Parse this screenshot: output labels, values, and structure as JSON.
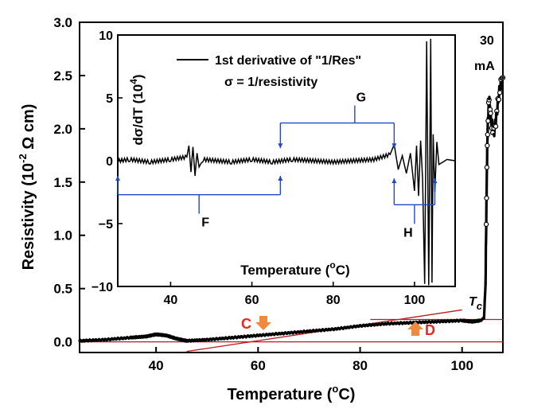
{
  "chart_data": [
    {
      "type": "line",
      "role": "main",
      "xlabel_main": "Temperature (",
      "xlabel_sup": "o",
      "xlabel_end": "C)",
      "ylabel_main": "Resistivity (10",
      "ylabel_sup": "-2",
      "ylabel_end": " Ω cm)",
      "xlim": [
        25,
        108
      ],
      "ylim": [
        -0.1,
        3.0
      ],
      "xticks": [
        40,
        60,
        80,
        100
      ],
      "yticks": [
        0.0,
        0.5,
        1.0,
        1.5,
        2.0,
        2.5,
        3.0
      ],
      "ytick_labels": [
        "0.0",
        "0.5",
        "1.0",
        "1.5",
        "2.0",
        "2.5",
        "3.0"
      ],
      "series": [
        {
          "name": "",
          "x": [
            25,
            30,
            35,
            38,
            40,
            42,
            44,
            46,
            50,
            55,
            60,
            65,
            70,
            75,
            80,
            85,
            90,
            95,
            100,
            102,
            103.5,
            104.3,
            104.6,
            104.8,
            105.0,
            105.3,
            105.6,
            106.2,
            106.8,
            107.4,
            108
          ],
          "y": [
            0.01,
            0.02,
            0.04,
            0.05,
            0.07,
            0.06,
            0.03,
            0.01,
            0.02,
            0.04,
            0.06,
            0.08,
            0.1,
            0.12,
            0.15,
            0.17,
            0.18,
            0.19,
            0.2,
            0.19,
            0.2,
            0.22,
            0.55,
            1.4,
            2.0,
            2.28,
            2.1,
            1.95,
            2.15,
            2.38,
            2.48
          ]
        }
      ],
      "annotations": {
        "tc_main": "T",
        "tc_sub": "c",
        "current_line1": "30",
        "current_line2": "mA",
        "label_c": "C",
        "label_d": "D"
      },
      "colors": {
        "data": "#000000",
        "fit_lines": "#c0181c",
        "arrow": "#f08a3c",
        "label_red": "#e8261e"
      }
    },
    {
      "type": "line",
      "role": "inset",
      "xlabel_main": "Temperature (",
      "xlabel_sup": "o",
      "xlabel_end": "C)",
      "ylabel_main": "dσ/dT (10",
      "ylabel_sup": "4",
      "ylabel_end": ")",
      "xlim": [
        27,
        110
      ],
      "ylim": [
        -10,
        10
      ],
      "xticks": [
        40,
        60,
        80,
        100
      ],
      "yticks": [
        -10,
        -5,
        0,
        5,
        10
      ],
      "ytick_labels": [
        "−10",
        "−5",
        "0",
        "5",
        "10"
      ],
      "legend": {
        "label": "1st derivative of \"1/Res\"",
        "note": "σ = 1/resistivity",
        "placement": "top-center"
      },
      "series": [
        {
          "name": "1st derivative of \"1/Res\"",
          "x": [
            27,
            30,
            35,
            40,
            44,
            44.5,
            45,
            45.5,
            46,
            46.5,
            47,
            48,
            55,
            60,
            65,
            70,
            80,
            90,
            94,
            95,
            96,
            97,
            98,
            99,
            100,
            100.5,
            101,
            101.5,
            102,
            102.5,
            103,
            103.5,
            104,
            104.3,
            104.6,
            105,
            105.5,
            106,
            108,
            110
          ],
          "y": [
            0,
            0.1,
            -0.1,
            0.1,
            0.3,
            1.2,
            -0.9,
            1.1,
            -1.2,
            0.6,
            -0.5,
            0.1,
            -0.1,
            0.1,
            -0.1,
            0.1,
            -0.1,
            0.1,
            0.5,
            1.3,
            -0.7,
            0.4,
            -1.0,
            0.6,
            -2.4,
            1.2,
            -2.8,
            1.6,
            -1.5,
            -9.8,
            9.5,
            -9.9,
            9.7,
            -9.7,
            2.1,
            -2.5,
            1.5,
            -0.3,
            0.1,
            0
          ]
        }
      ],
      "regions": [
        {
          "label": "F",
          "x0": 27,
          "x1": 67
        },
        {
          "label": "G",
          "x0": 67,
          "x1": 95
        },
        {
          "label": "H",
          "x0": 95,
          "x1": 105
        }
      ],
      "colors": {
        "data": "#000000",
        "brackets": "#2346c8"
      }
    }
  ]
}
